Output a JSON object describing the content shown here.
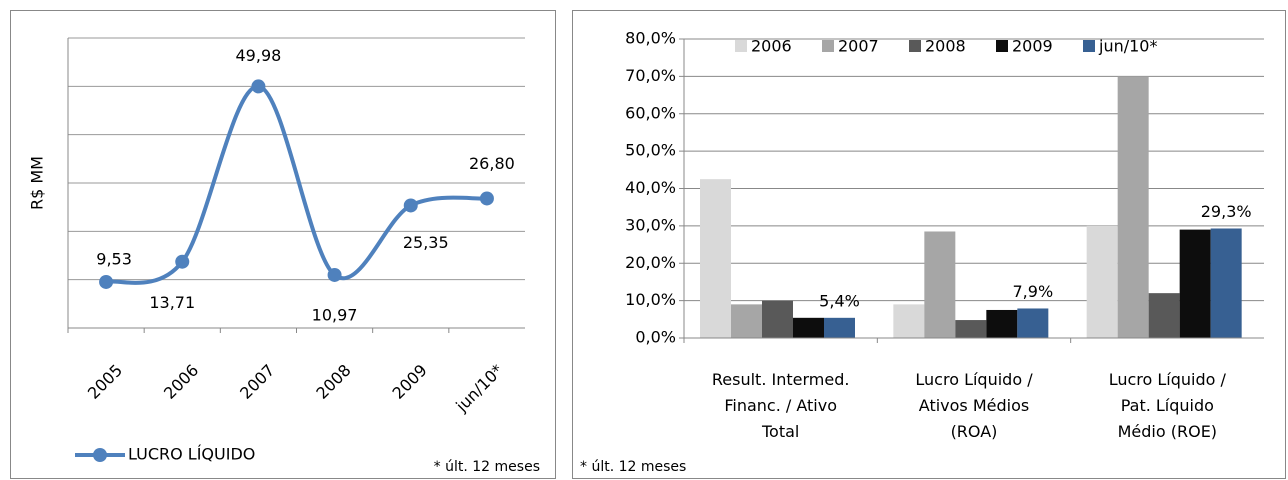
{
  "chart_data": [
    {
      "type": "line",
      "ylabel": "R$ MM",
      "categories": [
        "2005",
        "2006",
        "2007",
        "2008",
        "2009",
        "jun/10*"
      ],
      "series": [
        {
          "name": "LUCRO LÍQUIDO",
          "color": "#4f81bd",
          "values": [
            9.53,
            13.71,
            49.98,
            10.97,
            25.35,
            26.8
          ],
          "value_labels": [
            "9,53",
            "13,71",
            "49,98",
            "10,97",
            "25,35",
            "26,80"
          ]
        }
      ],
      "ylim": [
        0,
        60
      ],
      "yticks": [
        0,
        10,
        20,
        30,
        40,
        50,
        60
      ],
      "grid": true,
      "note": "* últ. 12 meses"
    },
    {
      "type": "bar",
      "categories": [
        "Result. Intermed. Financ. / Ativo Total",
        "Lucro Líquido / Ativos Médios (ROA)",
        "Lucro Líquido / Pat. Líquido Médio (ROE)"
      ],
      "series": [
        {
          "name": "2006",
          "color": "#d9d9d9",
          "values": [
            42.5,
            9.0,
            30.0
          ]
        },
        {
          "name": "2007",
          "color": "#a6a6a6",
          "values": [
            9.0,
            28.5,
            70.0
          ]
        },
        {
          "name": "2008",
          "color": "#595959",
          "values": [
            10.0,
            4.8,
            12.0
          ]
        },
        {
          "name": "2009",
          "color": "#0d0d0d",
          "values": [
            5.4,
            7.5,
            29.0
          ]
        },
        {
          "name": "jun/10*",
          "color": "#376092",
          "values": [
            5.4,
            7.9,
            29.3
          ],
          "value_labels": [
            "5,4%",
            "7,9%",
            "29,3%"
          ]
        }
      ],
      "ylim": [
        0,
        80
      ],
      "yticks": [
        {
          "value": 0,
          "label": "0,0%"
        },
        {
          "value": 10,
          "label": "10,0%"
        },
        {
          "value": 20,
          "label": "20,0%"
        },
        {
          "value": 30,
          "label": "30,0%"
        },
        {
          "value": 40,
          "label": "40,0%"
        },
        {
          "value": 50,
          "label": "50,0%"
        },
        {
          "value": 60,
          "label": "60,0%"
        },
        {
          "value": 70,
          "label": "70,0%"
        },
        {
          "value": 80,
          "label": "80,0%"
        }
      ],
      "grid": true,
      "legend": "top",
      "note": "* últ. 12 meses"
    }
  ]
}
